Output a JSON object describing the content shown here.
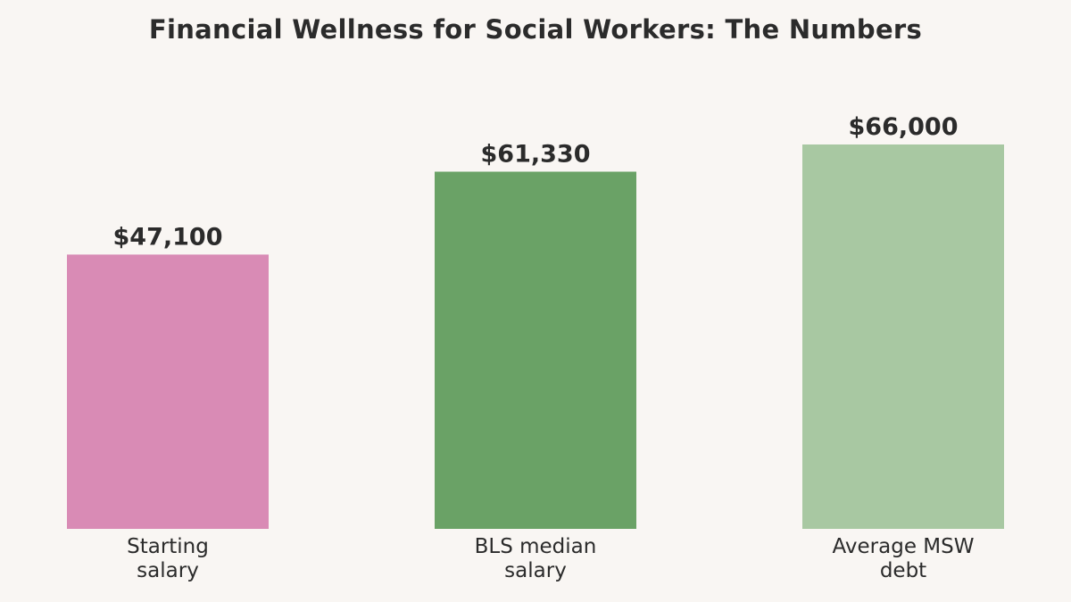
{
  "chart_data": {
    "type": "bar",
    "title": "Financial Wellness for Social Workers: The Numbers",
    "categories": [
      "Starting\nsalary",
      "BLS median\nsalary",
      "Average MSW\ndebt"
    ],
    "values": [
      47100,
      61330,
      66000
    ],
    "value_labels": [
      "$47,100",
      "$61,330",
      "$66,000"
    ],
    "colors": [
      "#d98bb5",
      "#6aa266",
      "#a8c8a2"
    ],
    "xlabel": "",
    "ylabel": "",
    "ylim": [
      0,
      66000
    ],
    "grid": false,
    "legend": "none"
  }
}
